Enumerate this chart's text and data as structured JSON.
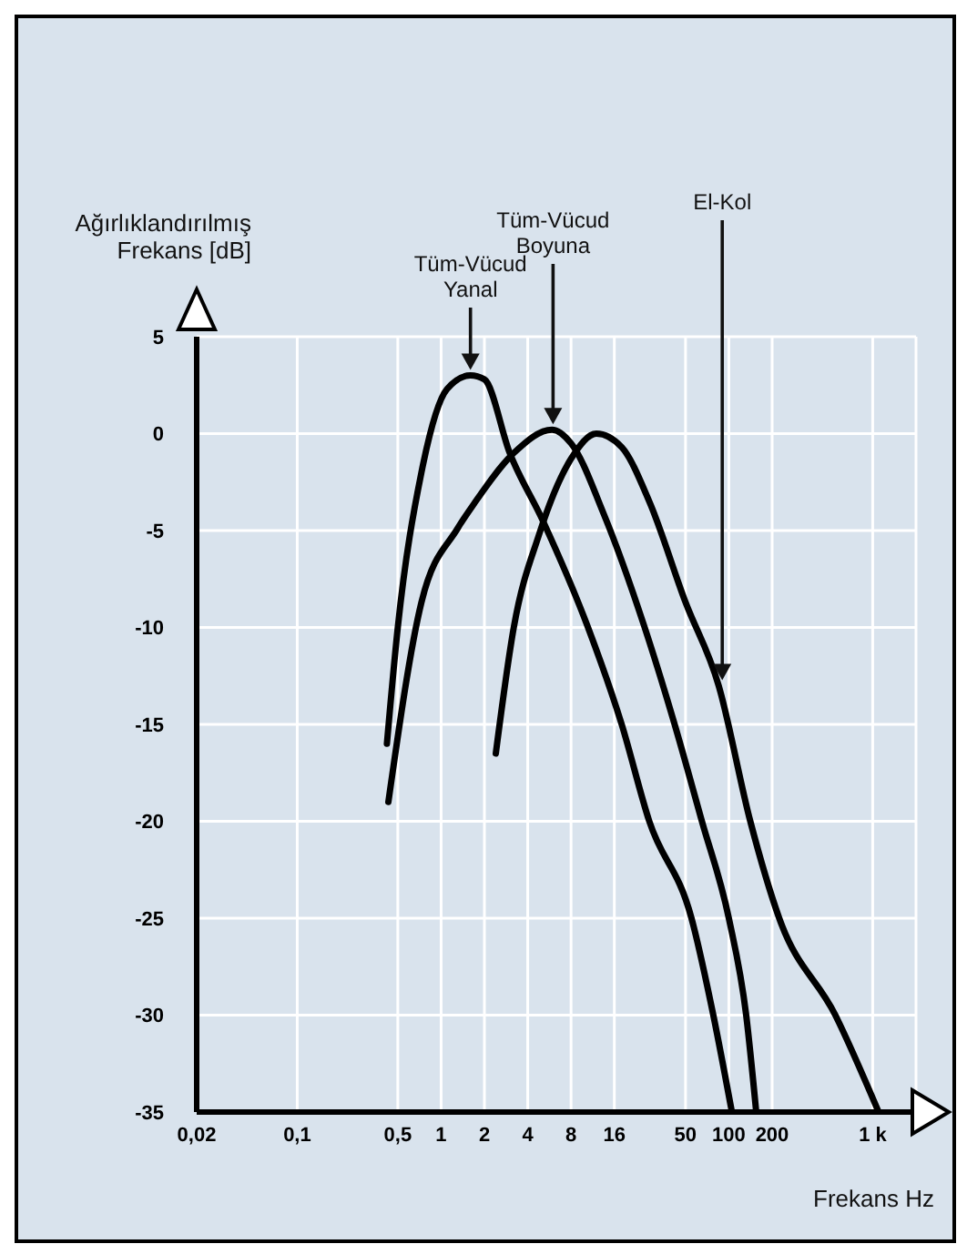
{
  "chart_data": {
    "type": "line",
    "ylabel": "Ağırlıklandırılmış Frekans [dB]",
    "xlabel": "Frekans Hz",
    "log": "x",
    "grid": true,
    "xlim": [
      0.02,
      2000
    ],
    "xticks": [
      {
        "value": 0.02,
        "label": "0,02"
      },
      {
        "value": 0.1,
        "label": "0,1"
      },
      {
        "value": 0.5,
        "label": "0,5"
      },
      1,
      2,
      4,
      8,
      16,
      50,
      100,
      200,
      {
        "value": 1000,
        "label": "1 k"
      }
    ],
    "ylim": [
      -35,
      5
    ],
    "yticks": [
      -35,
      -30,
      -25,
      -20,
      -15,
      -10,
      -5,
      0,
      5
    ],
    "series": [
      {
        "color": "#000000",
        "x": [
          0.42,
          0.5,
          0.73,
          1.1,
          1.6,
          2.0,
          3.0,
          5.1,
          10.5,
          18,
          28,
          55,
          78,
          105
        ],
        "values": [
          -16,
          -10,
          -2,
          2.3,
          3,
          2.8,
          -1,
          -4.5,
          -10,
          -15,
          -20,
          -25,
          -30,
          -35
        ]
      },
      {
        "color": "#000000",
        "x": [
          0.43,
          0.73,
          1.3,
          1.7,
          3.2,
          5.9,
          8,
          13.6,
          26,
          42,
          65,
          100,
          132,
          155
        ],
        "values": [
          -19,
          -8.7,
          -4.9,
          -3.6,
          -1,
          0.2,
          -0.5,
          -4.2,
          -10,
          -15,
          -20,
          -25,
          -30,
          -35
        ]
      },
      {
        "color": "#000000",
        "x": [
          2.4,
          3.2,
          4.8,
          8,
          12,
          18,
          28,
          50,
          85,
          141,
          224,
          550,
          1100
        ],
        "values": [
          -16.5,
          -10,
          -5.2,
          -1.3,
          0,
          -0.7,
          -3.5,
          -8.7,
          -13,
          -20,
          -25,
          -30,
          -35
        ]
      }
    ],
    "annotations": [
      {
        "text": "Tüm-Vücud Yanal",
        "x": 1.6,
        "y": 3
      },
      {
        "text": "Tüm-Vücud Boyuna",
        "x": 6,
        "y": 0.2
      },
      {
        "text": "El-Kol",
        "x": 90,
        "y": -13
      }
    ]
  }
}
